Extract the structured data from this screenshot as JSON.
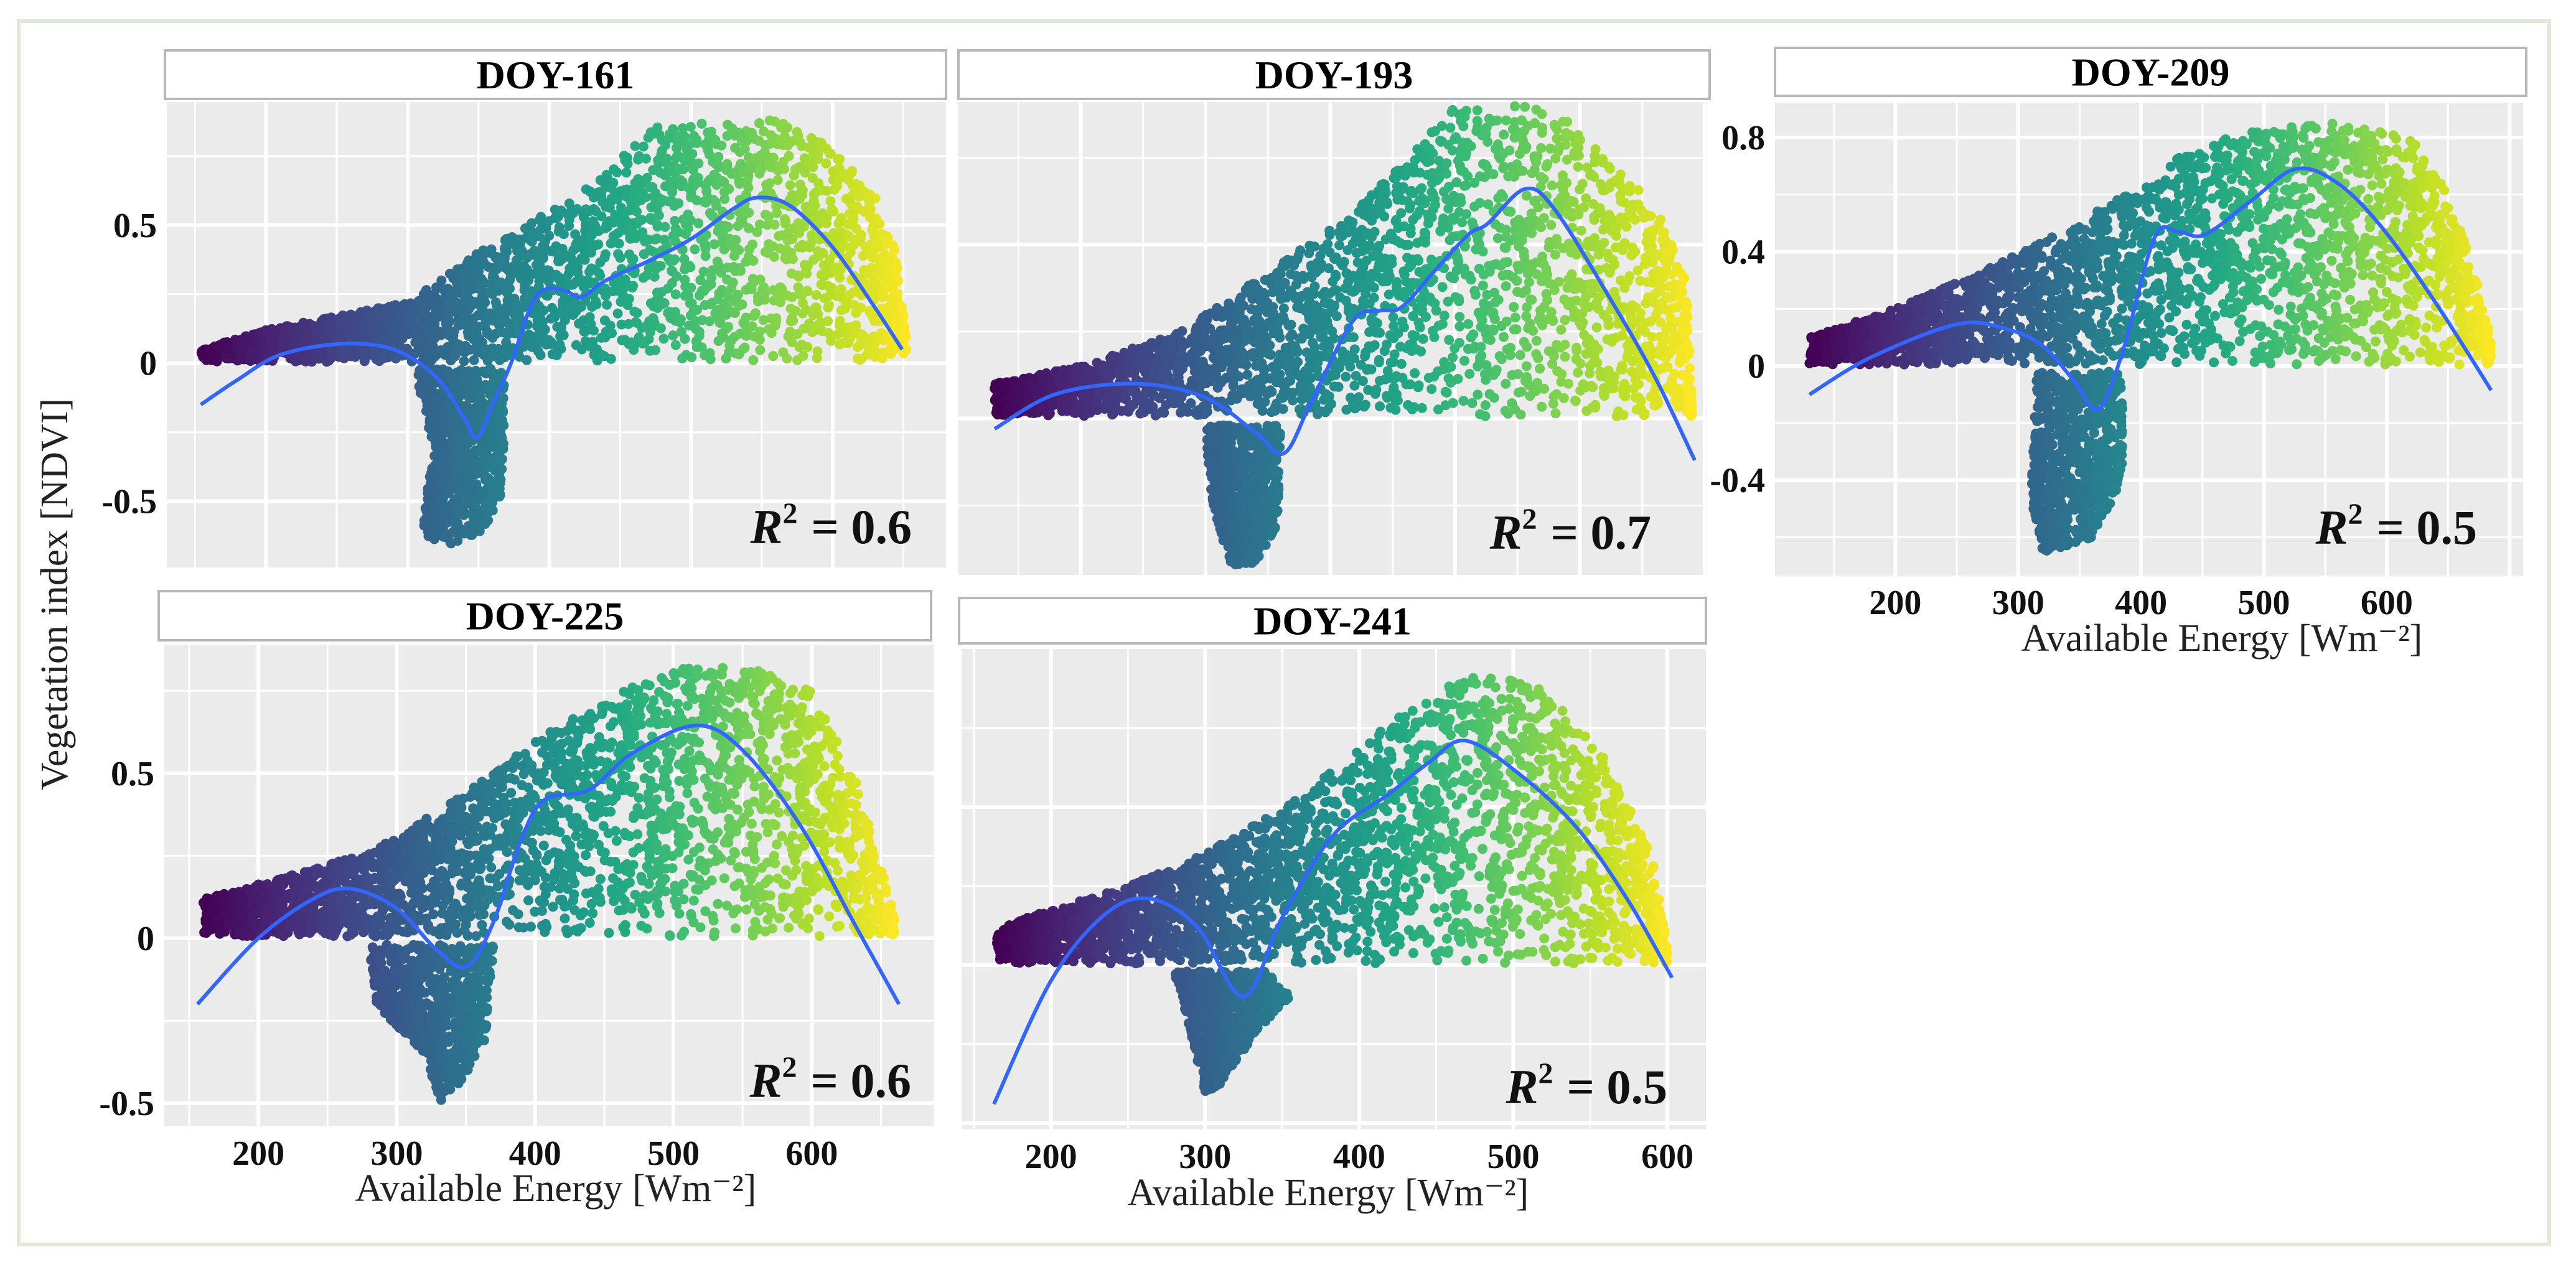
{
  "figure": {
    "ylabel": "Vegetation index [NDVI]",
    "border_color": "#dfe9d6",
    "panel_bg": "#ebebeb",
    "fit_color": "#3366ff",
    "colormap": "viridis"
  },
  "chart_data": [
    {
      "type": "scatter",
      "title": "DOY-161",
      "r2": {
        "symbol": "R",
        "exponent": "2",
        "value": "= 0.6"
      },
      "xlabel": "",
      "xlim": [
        130,
        680
      ],
      "ylim": [
        -0.74,
        0.946
      ],
      "x_ticks": [
        200,
        300,
        400,
        500,
        600
      ],
      "x_tick_labels": [],
      "y_ticks": [
        -0.5,
        0,
        0.5
      ],
      "y_tick_labels": [
        "-0.5",
        "0",
        "0.5"
      ],
      "fit_curve": [
        [
          154,
          -0.15
        ],
        [
          180,
          -0.06
        ],
        [
          210,
          0.03
        ],
        [
          253,
          0.07
        ],
        [
          290,
          0.05
        ],
        [
          320,
          -0.05
        ],
        [
          340,
          -0.2
        ],
        [
          349,
          -0.27
        ],
        [
          360,
          -0.15
        ],
        [
          373,
          0
        ],
        [
          388,
          0.22
        ],
        [
          399,
          0.27
        ],
        [
          412,
          0.26
        ],
        [
          423,
          0.24
        ],
        [
          440,
          0.3
        ],
        [
          470,
          0.37
        ],
        [
          500,
          0.45
        ],
        [
          530,
          0.56
        ],
        [
          547,
          0.6
        ],
        [
          570,
          0.57
        ],
        [
          600,
          0.42
        ],
        [
          630,
          0.2
        ],
        [
          649,
          0.05
        ]
      ],
      "upper_cloud_envelope": [
        [
          154,
          0.05
        ],
        [
          200,
          0.12
        ],
        [
          250,
          0.17
        ],
        [
          300,
          0.22
        ],
        [
          350,
          0.4
        ],
        [
          400,
          0.55
        ],
        [
          440,
          0.68
        ],
        [
          470,
          0.85
        ],
        [
          510,
          0.88
        ],
        [
          560,
          0.88
        ],
        [
          600,
          0.78
        ],
        [
          630,
          0.6
        ],
        [
          645,
          0.4
        ],
        [
          652,
          0.1
        ]
      ],
      "lower_cloud": [
        [
          305,
          -0.02
        ],
        [
          368,
          -0.02
        ],
        [
          368,
          -0.45
        ],
        [
          355,
          -0.6
        ],
        [
          330,
          -0.66
        ],
        [
          310,
          -0.62
        ],
        [
          318,
          -0.3
        ]
      ]
    },
    {
      "type": "scatter",
      "title": "DOY-193",
      "r2": {
        "symbol": "R",
        "exponent": "2",
        "value": "= 0.7"
      },
      "xlabel": "",
      "xlim": [
        102,
        702
      ],
      "ylim": [
        -0.45,
        0.91
      ],
      "x_ticks": [
        200,
        300,
        400,
        500,
        600
      ],
      "x_tick_labels": [],
      "y_ticks": [
        0,
        0.5
      ],
      "y_tick_labels": [],
      "fit_curve": [
        [
          131,
          -0.03
        ],
        [
          180,
          0.07
        ],
        [
          245,
          0.1
        ],
        [
          300,
          0.06
        ],
        [
          340,
          -0.04
        ],
        [
          363,
          -0.1
        ],
        [
          385,
          0.05
        ],
        [
          418,
          0.28
        ],
        [
          440,
          0.31
        ],
        [
          457,
          0.32
        ],
        [
          485,
          0.43
        ],
        [
          511,
          0.53
        ],
        [
          526,
          0.56
        ],
        [
          556,
          0.66
        ],
        [
          580,
          0.6
        ],
        [
          625,
          0.34
        ],
        [
          660,
          0.12
        ],
        [
          692,
          -0.12
        ]
      ],
      "upper_cloud_envelope": [
        [
          131,
          0.1
        ],
        [
          200,
          0.15
        ],
        [
          280,
          0.25
        ],
        [
          350,
          0.42
        ],
        [
          420,
          0.6
        ],
        [
          470,
          0.78
        ],
        [
          500,
          0.9
        ],
        [
          580,
          0.9
        ],
        [
          620,
          0.75
        ],
        [
          660,
          0.62
        ],
        [
          685,
          0.4
        ],
        [
          690,
          0.02
        ]
      ],
      "lower_cloud": [
        [
          300,
          -0.02
        ],
        [
          360,
          -0.02
        ],
        [
          358,
          -0.3
        ],
        [
          340,
          -0.42
        ],
        [
          320,
          -0.42
        ],
        [
          305,
          -0.25
        ]
      ]
    },
    {
      "type": "scatter",
      "title": "DOY-209",
      "r2": {
        "symbol": "R",
        "exponent": "2",
        "value": "= 0.5"
      },
      "xlabel": "Available Energy [Wm⁻²]",
      "xlim": [
        102,
        711
      ],
      "ylim": [
        -0.734,
        0.922
      ],
      "x_ticks": [
        200,
        300,
        400,
        500,
        600
      ],
      "x_tick_labels": [
        "200",
        "300",
        "400",
        "500",
        "600"
      ],
      "y_ticks": [
        -0.4,
        0,
        0.4,
        0.8
      ],
      "y_tick_labels": [
        "-0.4",
        "0",
        "0.4",
        "0.8"
      ],
      "fit_curve": [
        [
          130,
          -0.1
        ],
        [
          180,
          0.03
        ],
        [
          250,
          0.146
        ],
        [
          290,
          0.13
        ],
        [
          320,
          0.07
        ],
        [
          345,
          -0.05
        ],
        [
          365,
          -0.153
        ],
        [
          385,
          0.05
        ],
        [
          411,
          0.45
        ],
        [
          430,
          0.47
        ],
        [
          452,
          0.46
        ],
        [
          490,
          0.58
        ],
        [
          526,
          0.69
        ],
        [
          560,
          0.64
        ],
        [
          597,
          0.48
        ],
        [
          640,
          0.22
        ],
        [
          685,
          -0.085
        ]
      ],
      "upper_cloud_envelope": [
        [
          130,
          0.1
        ],
        [
          200,
          0.2
        ],
        [
          280,
          0.35
        ],
        [
          350,
          0.5
        ],
        [
          400,
          0.65
        ],
        [
          450,
          0.78
        ],
        [
          500,
          0.83
        ],
        [
          560,
          0.85
        ],
        [
          620,
          0.8
        ],
        [
          650,
          0.6
        ],
        [
          670,
          0.35
        ],
        [
          685,
          0.1
        ]
      ],
      "lower_cloud": [
        [
          315,
          -0.02
        ],
        [
          385,
          -0.02
        ],
        [
          385,
          -0.4
        ],
        [
          360,
          -0.6
        ],
        [
          320,
          -0.66
        ],
        [
          310,
          -0.45
        ]
      ]
    },
    {
      "type": "scatter",
      "title": "DOY-225",
      "r2": {
        "symbol": "R",
        "exponent": "2",
        "value": "= 0.6"
      },
      "xlabel": "Available Energy [Wm⁻²]",
      "xlim": [
        132,
        688
      ],
      "ylim": [
        -0.57,
        0.89
      ],
      "x_ticks": [
        200,
        300,
        400,
        500,
        600
      ],
      "x_tick_labels": [
        "200",
        "300",
        "400",
        "500",
        "600"
      ],
      "y_ticks": [
        -0.5,
        0,
        0.5
      ],
      "y_tick_labels": [
        "-0.5",
        "0",
        "0.5"
      ],
      "fit_curve": [
        [
          156,
          -0.2
        ],
        [
          200,
          0.0
        ],
        [
          240,
          0.12
        ],
        [
          267,
          0.15
        ],
        [
          300,
          0.09
        ],
        [
          330,
          -0.04
        ],
        [
          351,
          -0.085
        ],
        [
          370,
          0.05
        ],
        [
          390,
          0.3
        ],
        [
          407,
          0.42
        ],
        [
          439,
          0.45
        ],
        [
          470,
          0.56
        ],
        [
          516,
          0.645
        ],
        [
          550,
          0.57
        ],
        [
          592,
          0.34
        ],
        [
          630,
          0.05
        ],
        [
          663,
          -0.2
        ]
      ],
      "upper_cloud_envelope": [
        [
          160,
          0.12
        ],
        [
          250,
          0.22
        ],
        [
          300,
          0.3
        ],
        [
          350,
          0.45
        ],
        [
          400,
          0.6
        ],
        [
          450,
          0.72
        ],
        [
          500,
          0.82
        ],
        [
          560,
          0.82
        ],
        [
          600,
          0.75
        ],
        [
          630,
          0.5
        ],
        [
          655,
          0.15
        ],
        [
          660,
          0.05
        ]
      ],
      "lower_cloud": [
        [
          280,
          -0.02
        ],
        [
          370,
          -0.02
        ],
        [
          365,
          -0.3
        ],
        [
          345,
          -0.45
        ],
        [
          330,
          -0.5
        ],
        [
          320,
          -0.35
        ],
        [
          285,
          -0.2
        ]
      ]
    },
    {
      "type": "scatter",
      "title": "DOY-241",
      "r2": {
        "symbol": "R",
        "exponent": "2",
        "value": "= 0.5"
      },
      "xlabel": "Available Energy [Wm⁻²]",
      "xlim": [
        142,
        625
      ],
      "ylim": [
        -0.52,
        1.0
      ],
      "x_ticks": [
        200,
        300,
        400,
        500,
        600
      ],
      "x_tick_labels": [
        "200",
        "300",
        "400",
        "500",
        "600"
      ],
      "y_ticks": [
        -0.5,
        0,
        0.5
      ],
      "y_tick_labels": [],
      "fit_curve": [
        [
          163,
          -0.44
        ],
        [
          200,
          -0.05
        ],
        [
          235,
          0.16
        ],
        [
          264,
          0.21
        ],
        [
          295,
          0.12
        ],
        [
          325,
          -0.1
        ],
        [
          350,
          0.15
        ],
        [
          383,
          0.41
        ],
        [
          419,
          0.54
        ],
        [
          445,
          0.64
        ],
        [
          469,
          0.71
        ],
        [
          505,
          0.6
        ],
        [
          542,
          0.43
        ],
        [
          575,
          0.2
        ],
        [
          603,
          -0.04
        ]
      ],
      "upper_cloud_envelope": [
        [
          165,
          0.12
        ],
        [
          250,
          0.25
        ],
        [
          300,
          0.35
        ],
        [
          350,
          0.5
        ],
        [
          400,
          0.68
        ],
        [
          440,
          0.85
        ],
        [
          480,
          0.92
        ],
        [
          520,
          0.88
        ],
        [
          560,
          0.65
        ],
        [
          590,
          0.35
        ],
        [
          600,
          0.05
        ]
      ],
      "lower_cloud": [
        [
          280,
          -0.02
        ],
        [
          340,
          -0.02
        ],
        [
          355,
          -0.1
        ],
        [
          335,
          -0.2
        ],
        [
          310,
          -0.38
        ],
        [
          300,
          -0.4
        ],
        [
          290,
          -0.2
        ]
      ]
    }
  ]
}
